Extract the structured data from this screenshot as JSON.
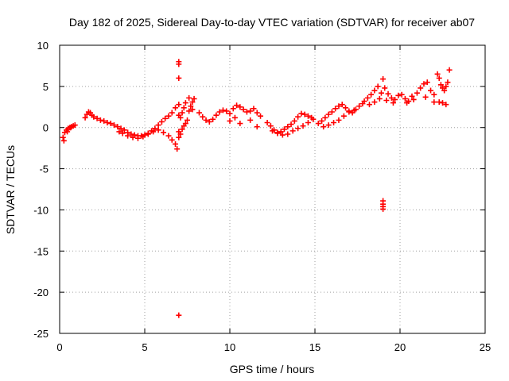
{
  "chart_data": {
    "type": "scatter",
    "title": "Day 182 of 2025, Sidereal Day-to-day VTEC variation (SDTVAR) for receiver ab07",
    "xlabel": "GPS time / hours",
    "ylabel": "SDTVAR / TECUs",
    "xlim": [
      0,
      25
    ],
    "ylim": [
      -25,
      10
    ],
    "xticks": [
      "0",
      "5",
      "10",
      "15",
      "20",
      "25"
    ],
    "yticks": [
      "-25",
      "-20",
      "-15",
      "-10",
      "-5",
      "0",
      "5",
      "10"
    ],
    "grid": true,
    "marker": "+",
    "color": "#ff0000",
    "series": [
      {
        "name": "SDTVAR",
        "x": [
          0.2,
          0.3,
          0.4,
          0.5,
          0.6,
          0.7,
          0.8,
          0.9,
          0.25,
          0.45,
          0.65,
          1.5,
          1.6,
          1.7,
          1.8,
          1.9,
          2.0,
          2.2,
          2.4,
          2.6,
          2.8,
          3.0,
          3.2,
          3.4,
          3.6,
          3.8,
          4.0,
          4.2,
          4.4,
          4.6,
          4.8,
          5.0,
          5.2,
          5.4,
          5.6,
          5.8,
          6.0,
          6.2,
          6.4,
          6.6,
          6.8,
          3.5,
          3.7,
          4.0,
          4.3,
          4.6,
          4.9,
          5.2,
          5.5,
          5.8,
          6.1,
          6.4,
          6.6,
          6.8,
          6.9,
          7.0,
          7.0,
          7.0,
          7.0,
          7.1,
          7.2,
          7.3,
          7.4,
          7.5,
          7.6,
          7.7,
          7.8,
          7.9,
          7.1,
          7.2,
          7.3,
          7.4,
          7.6,
          7.8,
          8.2,
          8.4,
          8.6,
          8.8,
          9.0,
          9.2,
          9.4,
          9.6,
          9.8,
          10.0,
          10.2,
          10.4,
          10.6,
          10.8,
          11.0,
          11.2,
          11.4,
          11.6,
          11.8,
          10.0,
          10.3,
          10.6,
          11.2,
          11.6,
          12.2,
          12.4,
          12.6,
          12.8,
          13.0,
          13.2,
          13.4,
          13.6,
          13.8,
          14.0,
          14.2,
          14.4,
          14.6,
          14.8,
          12.5,
          12.8,
          13.1,
          13.4,
          13.7,
          14.0,
          14.3,
          14.6,
          14.9,
          15.2,
          15.4,
          15.6,
          15.8,
          16.0,
          16.2,
          16.4,
          16.6,
          16.8,
          17.0,
          17.2,
          17.4,
          17.6,
          17.8,
          15.5,
          15.8,
          16.1,
          16.4,
          16.7,
          17.0,
          17.3,
          17.9,
          18.1,
          18.3,
          18.5,
          18.7,
          18.9,
          19.0,
          19.1,
          19.3,
          19.5,
          19.7,
          19.9,
          18.2,
          18.5,
          18.8,
          19.2,
          19.6,
          20.1,
          20.3,
          20.5,
          20.7,
          21.0,
          21.2,
          21.4,
          21.6,
          21.8,
          22.0,
          20.4,
          20.8,
          21.5,
          22.0,
          22.2,
          22.3,
          22.4,
          22.5,
          22.6,
          22.7,
          22.8,
          22.9,
          22.3,
          22.5,
          22.7,
          7.0,
          7.0,
          7.0,
          7.0,
          19.0,
          19.0,
          19.0,
          19.0
        ],
        "y": [
          -1.2,
          -0.6,
          -0.3,
          -0.1,
          0.0,
          0.1,
          0.2,
          0.3,
          -1.6,
          -0.5,
          0.0,
          1.2,
          1.6,
          1.9,
          1.8,
          1.5,
          1.3,
          1.1,
          0.9,
          0.8,
          0.6,
          0.5,
          0.3,
          0.1,
          -0.1,
          -0.3,
          -0.6,
          -0.8,
          -0.9,
          -1.0,
          -1.0,
          -0.9,
          -0.7,
          -0.4,
          -0.1,
          0.3,
          0.7,
          1.1,
          1.4,
          1.8,
          2.4,
          -0.5,
          -0.7,
          -1.0,
          -1.2,
          -1.3,
          -1.1,
          -0.8,
          -0.5,
          -0.3,
          -0.6,
          -1.0,
          -1.5,
          -2.0,
          -2.6,
          -0.5,
          -1.2,
          1.5,
          2.8,
          -0.8,
          -0.2,
          0.2,
          0.5,
          0.9,
          2.0,
          2.6,
          3.1,
          3.5,
          1.2,
          1.8,
          2.4,
          3.0,
          3.6,
          2.2,
          1.8,
          1.3,
          0.9,
          0.7,
          1.0,
          1.5,
          1.9,
          2.1,
          2.0,
          1.7,
          2.3,
          2.7,
          2.5,
          2.2,
          1.9,
          2.0,
          2.3,
          1.8,
          1.4,
          0.8,
          1.2,
          0.5,
          0.9,
          0.1,
          0.6,
          0.2,
          -0.3,
          -0.6,
          -0.5,
          -0.2,
          0.1,
          0.4,
          0.8,
          1.3,
          1.7,
          1.6,
          1.4,
          1.2,
          -0.4,
          -0.7,
          -0.9,
          -0.8,
          -0.4,
          -0.1,
          0.2,
          0.6,
          1.0,
          0.5,
          0.8,
          1.2,
          1.6,
          1.9,
          2.3,
          2.6,
          2.8,
          2.4,
          2.0,
          1.8,
          2.2,
          2.6,
          2.9,
          0.1,
          0.3,
          0.6,
          0.9,
          1.4,
          1.9,
          2.1,
          3.2,
          3.6,
          4.0,
          4.5,
          5.0,
          4.2,
          5.9,
          4.8,
          4.1,
          3.6,
          3.4,
          3.9,
          2.8,
          3.1,
          3.5,
          3.3,
          3.0,
          4.0,
          3.5,
          3.2,
          3.8,
          4.2,
          4.8,
          5.3,
          5.5,
          4.5,
          4.0,
          3.0,
          3.4,
          3.7,
          3.1,
          6.5,
          6.0,
          5.2,
          4.8,
          4.5,
          5.0,
          5.5,
          7.0,
          3.1,
          3.0,
          2.8,
          8.0,
          7.7,
          6.0,
          -22.8,
          -8.9,
          -9.3,
          -9.6,
          -9.9
        ]
      }
    ]
  }
}
